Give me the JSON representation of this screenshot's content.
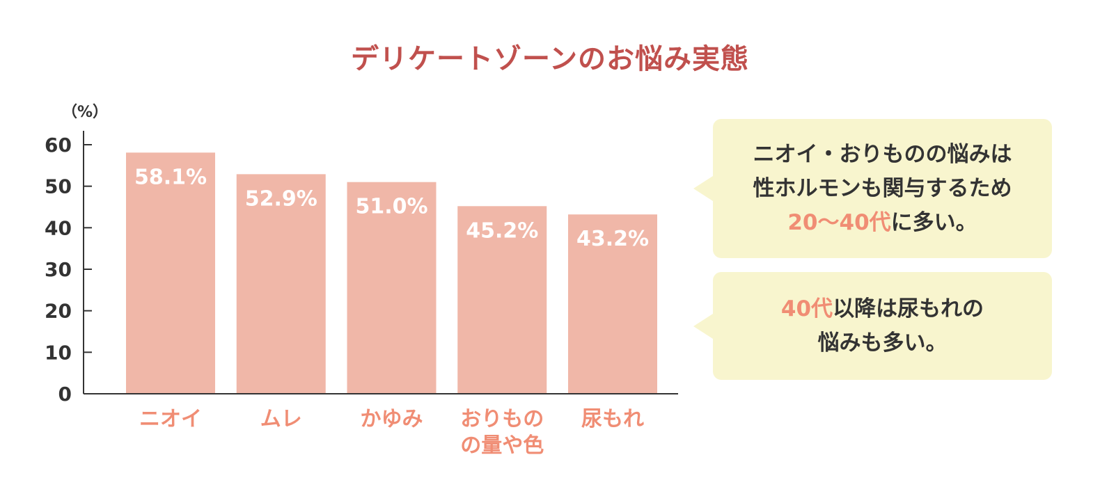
{
  "title": "デリケートゾーンのお悩み実態",
  "chart_data": {
    "type": "bar",
    "unit_label": "（%）",
    "categories": [
      [
        "ニオイ"
      ],
      [
        "ムレ"
      ],
      [
        "かゆみ"
      ],
      [
        "おりもの",
        "の量や色"
      ],
      [
        "尿もれ"
      ]
    ],
    "values": [
      58.1,
      52.9,
      51.0,
      45.2,
      43.2
    ],
    "data_labels": [
      "58.1%",
      "52.9%",
      "51.0%",
      "45.2%",
      "43.2%"
    ],
    "ylim": [
      0,
      60
    ],
    "yticks": [
      0,
      10,
      20,
      30,
      40,
      50,
      60
    ],
    "grid": false,
    "bar_color": "#f0b7a8",
    "category_label_color": "#f08d74",
    "axis_color": "#333333"
  },
  "callouts": [
    {
      "line1": "ニオイ・おりものの悩みは",
      "line2": "性ホルモンも関与するため",
      "highlight": "20～40代",
      "rest": "に多い。"
    },
    {
      "highlight": "40代",
      "rest": "以降は尿もれの",
      "line2": "悩みも多い。"
    }
  ],
  "colors": {
    "title": "#c0504d",
    "callout_bg": "#f8f5ce",
    "highlight": "#f08d74"
  }
}
